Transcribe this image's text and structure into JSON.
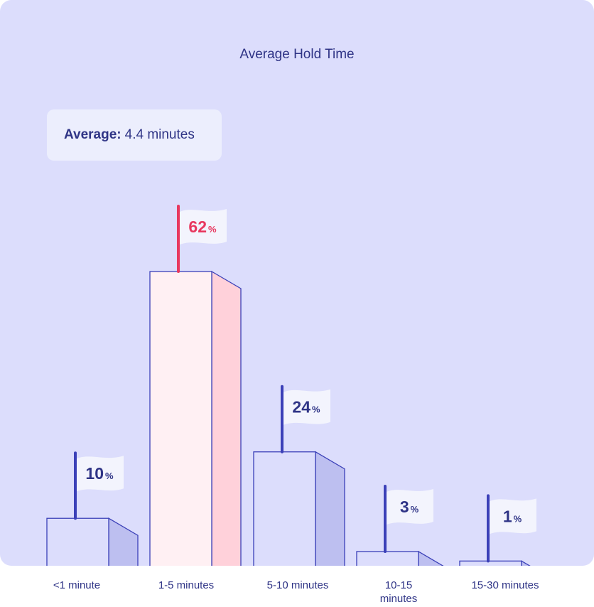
{
  "chart_data": {
    "type": "bar",
    "title": "Average Hold Time",
    "annotation": {
      "label": "Average:",
      "value": "4.4 minutes"
    },
    "categories": [
      "<1 minute",
      "1-5 minutes",
      "5-10 minutes",
      "10-15 minutes",
      "15-30 minutes"
    ],
    "values": [
      10,
      62,
      24,
      3,
      1
    ],
    "value_labels": [
      "10",
      "62",
      "24",
      "3",
      "1"
    ],
    "unit": "%",
    "highlight_index": 1,
    "grid": false,
    "colors": {
      "background": "#dcddfc",
      "bar_front": "#dcddfc",
      "bar_side": "#bdbff0",
      "bar_outline": "#3b40b8",
      "highlight_front": "#fff0f3",
      "highlight_side": "#ffd1da",
      "highlight_pole": "#e8385f",
      "label_text": "#2f3486",
      "highlight_text": "#e8385f",
      "flag": "#f3f4fd"
    }
  }
}
